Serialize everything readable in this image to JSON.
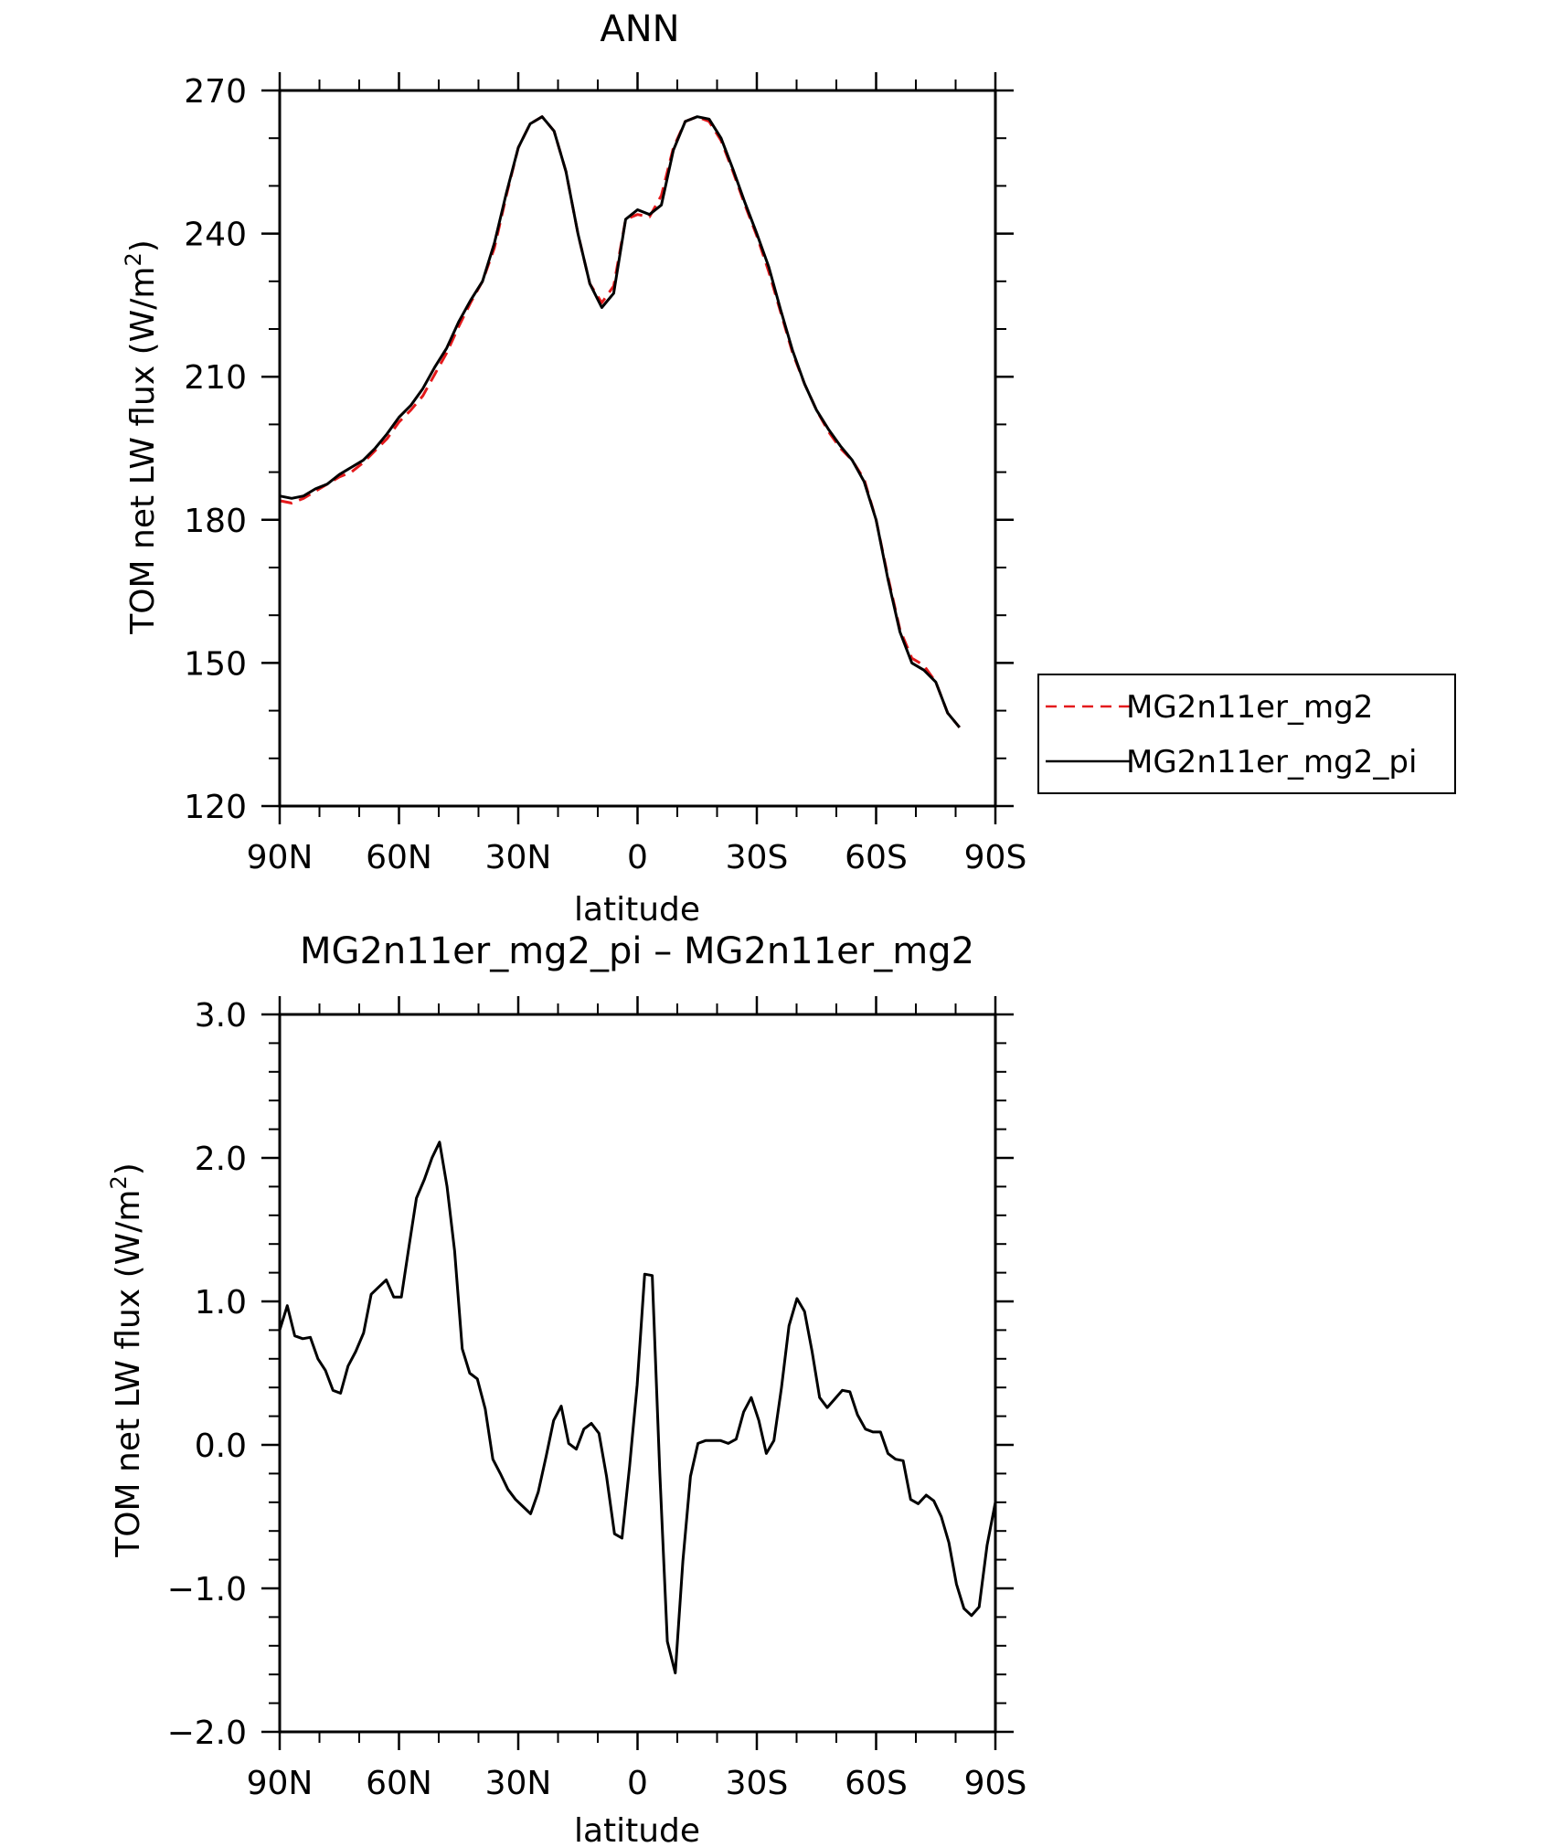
{
  "chart_data": [
    {
      "type": "line",
      "title": "ANN",
      "xlabel": "latitude",
      "ylabel": "TOM net LW flux (W/m²)",
      "ylabel_parts": [
        "TOM net LW flux (W/m",
        "2",
        ")"
      ],
      "xticks": [
        {
          "value": 90,
          "label": "90N"
        },
        {
          "value": 60,
          "label": "60N"
        },
        {
          "value": 30,
          "label": "30N"
        },
        {
          "value": 0,
          "label": "0"
        },
        {
          "value": -30,
          "label": "30S"
        },
        {
          "value": -60,
          "label": "60S"
        },
        {
          "value": -90,
          "label": "90S"
        }
      ],
      "xlim": [
        90,
        -90
      ],
      "ylim": [
        120,
        270
      ],
      "yticks": [
        {
          "value": 120,
          "label": "120"
        },
        {
          "value": 150,
          "label": "150"
        },
        {
          "value": 180,
          "label": "180"
        },
        {
          "value": 210,
          "label": "210"
        },
        {
          "value": 240,
          "label": "240"
        },
        {
          "value": 270,
          "label": "270"
        }
      ],
      "legend": {
        "position": "outside-right"
      },
      "series": [
        {
          "name": "MG2n11er_mg2",
          "color": "#e41a1c",
          "dash": "dashed",
          "x": [
            90,
            87,
            84,
            81,
            78,
            75,
            72,
            69,
            66,
            63,
            60,
            57,
            54,
            51,
            48,
            45,
            42,
            39,
            36,
            33,
            30,
            27,
            24,
            21,
            18,
            15,
            12,
            9,
            6,
            3,
            0,
            -3,
            -6,
            -9,
            -12,
            -15,
            -18,
            -21,
            -24,
            -27,
            -30,
            -33,
            -36,
            -39,
            -42,
            -45,
            -48,
            -51,
            -54,
            -57,
            -60,
            -63,
            -66,
            -69,
            -72,
            -75,
            -78,
            -81,
            -84,
            -87,
            -90
          ],
          "y": [
            184,
            183.5,
            184.5,
            186,
            187.5,
            189,
            190,
            192,
            194.5,
            197,
            200.5,
            203,
            206,
            210.5,
            215,
            220.5,
            225.5,
            230,
            237,
            248,
            258,
            263,
            264.5,
            261.5,
            253,
            240,
            229.5,
            225.5,
            229,
            243,
            244,
            243.5,
            248,
            258,
            263.5,
            264.5,
            263.5,
            259.5,
            253,
            246,
            239.5,
            232,
            223.5,
            215,
            208.5,
            203,
            198.5,
            195,
            192.5,
            188.5,
            180,
            168,
            157,
            151,
            149.5,
            146,
            139.5,
            136.5,
            null,
            null,
            null
          ]
        },
        {
          "name": "MG2n11er_mg2_pi",
          "color": "#000000",
          "dash": "solid",
          "x": [
            90,
            87,
            84,
            81,
            78,
            75,
            72,
            69,
            66,
            63,
            60,
            57,
            54,
            51,
            48,
            45,
            42,
            39,
            36,
            33,
            30,
            27,
            24,
            21,
            18,
            15,
            12,
            9,
            6,
            3,
            0,
            -3,
            -6,
            -9,
            -12,
            -15,
            -18,
            -21,
            -24,
            -27,
            -30,
            -33,
            -36,
            -39,
            -42,
            -45,
            -48,
            -51,
            -54,
            -57,
            -60,
            -63,
            -66,
            -69,
            -72,
            -75,
            -78,
            -81,
            -84,
            -87,
            -90
          ],
          "y": [
            185,
            184.5,
            185,
            186.5,
            187.5,
            189.5,
            191,
            192.5,
            195,
            198,
            201.5,
            204,
            207.5,
            212,
            216,
            221.5,
            226,
            230,
            238,
            248.5,
            258,
            263,
            264.5,
            261.5,
            253,
            240,
            229.5,
            224.5,
            227.5,
            243,
            245,
            244,
            246,
            257.5,
            263.5,
            264.5,
            264,
            260,
            253.5,
            246.5,
            240,
            233,
            224,
            215.5,
            208.5,
            203,
            199,
            195.5,
            192.5,
            188,
            180,
            167.5,
            156.5,
            150,
            148.5,
            146,
            139.5,
            136.5,
            null,
            null,
            null
          ]
        }
      ]
    },
    {
      "type": "line",
      "title": "MG2n11er_mg2_pi – MG2n11er_mg2",
      "xlabel": "latitude",
      "ylabel": "TOM net LW flux (W/m²)",
      "ylabel_parts": [
        "TOM net LW flux (W/m",
        "2",
        ")"
      ],
      "xticks": [
        {
          "value": 90,
          "label": "90N"
        },
        {
          "value": 60,
          "label": "60N"
        },
        {
          "value": 30,
          "label": "30N"
        },
        {
          "value": 0,
          "label": "0"
        },
        {
          "value": -30,
          "label": "30S"
        },
        {
          "value": -60,
          "label": "60S"
        },
        {
          "value": -90,
          "label": "90S"
        }
      ],
      "xlim": [
        90,
        -90
      ],
      "ylim": [
        -2.0,
        3.0
      ],
      "yticks": [
        {
          "value": -2.0,
          "label": "−2.0"
        },
        {
          "value": -1.0,
          "label": "−1.0"
        },
        {
          "value": 0.0,
          "label": "0.0"
        },
        {
          "value": 1.0,
          "label": "1.0"
        },
        {
          "value": 2.0,
          "label": "2.0"
        },
        {
          "value": 3.0,
          "label": "3.0"
        }
      ],
      "series": [
        {
          "color": "#000000",
          "dash": "solid",
          "x": [
            90,
            88.1,
            86.2,
            84.2,
            82.3,
            80.4,
            78.5,
            76.6,
            74.7,
            72.8,
            70.9,
            68.9,
            67.0,
            65.1,
            63.2,
            61.3,
            59.4,
            57.5,
            55.6,
            53.6,
            51.7,
            49.8,
            47.9,
            46.0,
            44.1,
            42.2,
            40.3,
            38.3,
            36.4,
            34.5,
            32.6,
            30.7,
            28.8,
            26.9,
            25.0,
            23.0,
            21.1,
            19.2,
            17.3,
            15.4,
            13.5,
            11.6,
            9.7,
            7.8,
            5.8,
            3.9,
            2.0,
            0.1,
            -1.8,
            -3.7,
            -5.6,
            -7.5,
            -9.5,
            -11.4,
            -13.3,
            -15.2,
            -17.1,
            -19.0,
            -20.9,
            -22.8,
            -24.8,
            -26.7,
            -28.6,
            -30.5,
            -32.4,
            -34.3,
            -36.2,
            -38.1,
            -40.1,
            -42.0,
            -43.9,
            -45.8,
            -47.7,
            -49.6,
            -51.5,
            -53.4,
            -55.3,
            -57.3,
            -59.2,
            -61.1,
            -63.0,
            -64.9,
            -66.8,
            -68.7,
            -70.6,
            -72.6,
            -74.5,
            -76.4,
            -78.3,
            -80.2,
            -82.1,
            -84.0,
            -85.9,
            -87.9,
            -90
          ],
          "y": [
            0.8,
            0.97,
            0.76,
            0.74,
            0.75,
            0.6,
            0.52,
            0.38,
            0.36,
            0.55,
            0.65,
            0.78,
            1.05,
            1.1,
            1.15,
            1.03,
            1.03,
            1.38,
            1.72,
            1.85,
            2.0,
            2.11,
            1.8,
            1.35,
            0.67,
            0.5,
            0.46,
            0.25,
            -0.1,
            -0.2,
            -0.31,
            -0.38,
            -0.43,
            -0.48,
            -0.33,
            -0.08,
            0.17,
            0.27,
            0.01,
            -0.03,
            0.11,
            0.15,
            0.08,
            -0.22,
            -0.62,
            -0.65,
            -0.15,
            0.42,
            1.19,
            1.18,
            -0.2,
            -1.37,
            -1.59,
            -0.81,
            -0.22,
            0.01,
            0.03,
            0.03,
            0.03,
            0.01,
            0.04,
            0.23,
            0.33,
            0.17,
            -0.06,
            0.03,
            0.4,
            0.83,
            1.02,
            0.93,
            0.65,
            0.33,
            0.26,
            0.32,
            0.38,
            0.37,
            0.21,
            0.11,
            0.09,
            0.09,
            -0.06,
            -0.1,
            -0.11,
            -0.38,
            -0.41,
            -0.35,
            -0.39,
            -0.5,
            -0.68,
            -0.97,
            -1.14,
            -1.19,
            -1.13,
            -0.7,
            -0.4
          ]
        }
      ]
    }
  ]
}
